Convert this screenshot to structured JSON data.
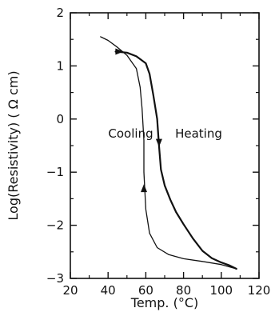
{
  "chart_data": {
    "type": "line",
    "title": "",
    "xlabel": "Temp. (°C)",
    "ylabel": "Log(Resistivity) ( Ω cm)",
    "xlim": [
      20,
      120
    ],
    "ylim": [
      -3,
      2
    ],
    "x_ticks": [
      20,
      40,
      60,
      80,
      100,
      120
    ],
    "y_ticks": [
      -3,
      -2,
      -1,
      0,
      1,
      2
    ],
    "grid": false,
    "legend": "none",
    "annotations": [
      {
        "text": "Cooling",
        "x": 52,
        "y": -0.35
      },
      {
        "text": "Heating",
        "x": 88,
        "y": -0.35
      }
    ],
    "series": [
      {
        "id": "heating",
        "line_width": 2.2,
        "points": [
          [
            44,
            1.27
          ],
          [
            50,
            1.25
          ],
          [
            55,
            1.18
          ],
          [
            60,
            1.05
          ],
          [
            62,
            0.85
          ],
          [
            64,
            0.45
          ],
          [
            66,
            0.0
          ],
          [
            67,
            -0.5
          ],
          [
            68,
            -0.95
          ],
          [
            70,
            -1.25
          ],
          [
            73,
            -1.52
          ],
          [
            76,
            -1.75
          ],
          [
            80,
            -1.98
          ],
          [
            85,
            -2.25
          ],
          [
            90,
            -2.48
          ],
          [
            95,
            -2.62
          ],
          [
            100,
            -2.7
          ],
          [
            104,
            -2.75
          ],
          [
            108,
            -2.82
          ]
        ]
      },
      {
        "id": "cooling",
        "line_width": 1.3,
        "points": [
          [
            108,
            -2.82
          ],
          [
            100,
            -2.74
          ],
          [
            90,
            -2.68
          ],
          [
            80,
            -2.63
          ],
          [
            72,
            -2.55
          ],
          [
            66,
            -2.42
          ],
          [
            62,
            -2.15
          ],
          [
            60,
            -1.7
          ],
          [
            59,
            -1.0
          ],
          [
            59,
            -0.4
          ],
          [
            58,
            0.2
          ],
          [
            57,
            0.6
          ],
          [
            55,
            0.95
          ],
          [
            50,
            1.2
          ],
          [
            45,
            1.35
          ],
          [
            40,
            1.48
          ],
          [
            36,
            1.55
          ]
        ]
      }
    ],
    "arrows": [
      {
        "series": "heating",
        "x": 67,
        "y": -0.45,
        "direction": "down"
      },
      {
        "series": "cooling",
        "x": 59,
        "y": -1.3,
        "direction": "up"
      },
      {
        "series": "heating",
        "x": 46,
        "y": 1.27,
        "direction": "right"
      }
    ]
  }
}
